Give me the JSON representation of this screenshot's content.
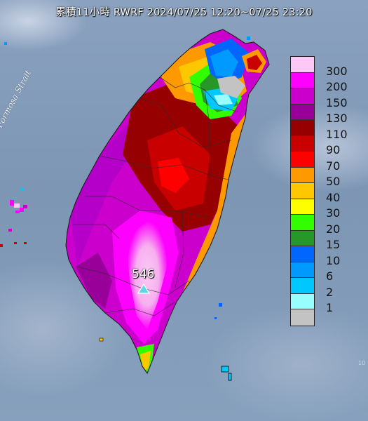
{
  "title": "累積11小時 RWRF 2024/07/25 12:20~07/25 23:20",
  "strait_label": "Formosa Strait",
  "max_value_label": "546",
  "corner_text": "10",
  "legend": {
    "labels": [
      "300",
      "200",
      "150",
      "130",
      "110",
      "90",
      "70",
      "50",
      "40",
      "30",
      "20",
      "15",
      "10",
      "6",
      "2",
      "1"
    ],
    "colors": [
      "#fec8f6",
      "#fe00fe",
      "#cc00cc",
      "#99009a",
      "#960000",
      "#c80000",
      "#fe0000",
      "#fe9900",
      "#fec700",
      "#fefe00",
      "#33fe00",
      "#279727",
      "#0066fe",
      "#0099fe",
      "#00c8fe",
      "#99fefe",
      "#c3c3c3"
    ]
  }
}
